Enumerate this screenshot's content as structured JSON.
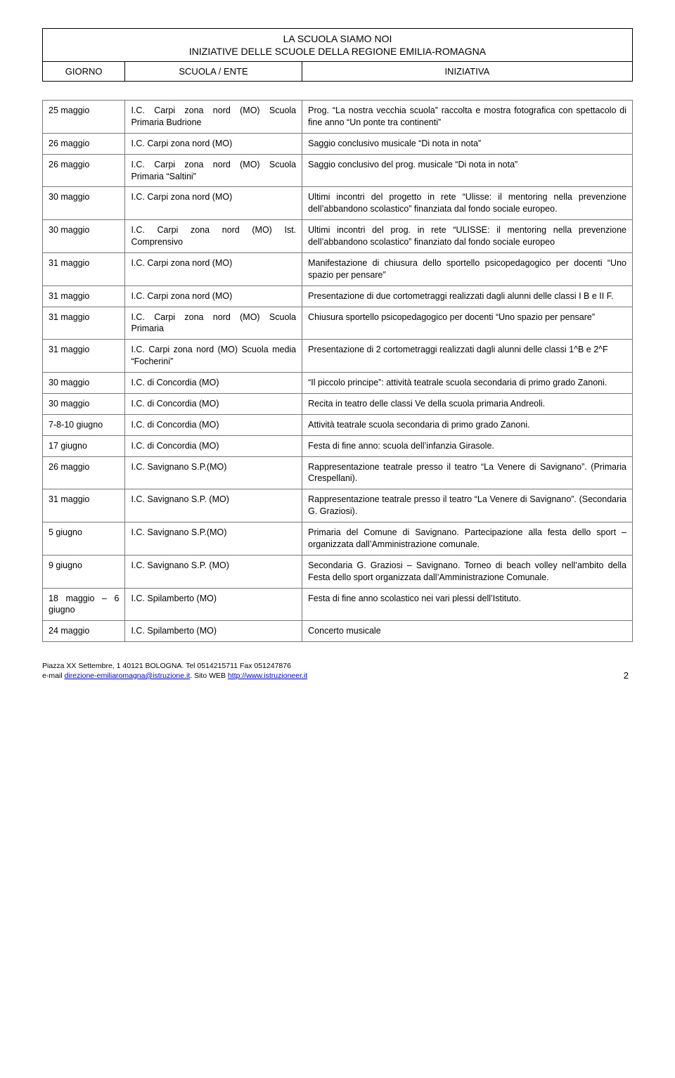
{
  "header": {
    "title1": "LA SCUOLA SIAMO NOI",
    "title2": "INIZIATIVE DELLE SCUOLE DELLA REGIONE EMILIA-ROMAGNA",
    "col1": "GIORNO",
    "col2": "SCUOLA / ENTE",
    "col3": "INIZIATIVA"
  },
  "rows": [
    {
      "d": "25 maggio",
      "s": "I.C. Carpi zona nord (MO) Scuola Primaria Budrione",
      "i": "Prog. “La nostra vecchia scuola”  raccolta e mostra fotografica con spettacolo di fine anno  “Un ponte tra continenti”"
    },
    {
      "d": "26 maggio",
      "s": "I.C. Carpi zona nord (MO)",
      "i": "Saggio conclusivo musicale “Di nota in nota”"
    },
    {
      "d": "26 maggio",
      "s": "I.C. Carpi zona nord (MO) Scuola Primaria “Saltini”",
      "i": "Saggio conclusivo del prog. musicale “Di nota in nota”"
    },
    {
      "d": "30 maggio",
      "s": "I.C. Carpi zona nord (MO)",
      "i": "Ultimi incontri del progetto in rete “Ulisse: il mentoring nella prevenzione dell’abbandono scolastico” finanziata dal fondo sociale europeo."
    },
    {
      "d": "30 maggio",
      "s": "I.C. Carpi zona nord (MO) Ist. Comprensivo",
      "i": "Ultimi incontri del prog. in rete “ULISSE: il mentoring nella prevenzione dell’abbandono scolastico” finanziato dal fondo sociale europeo"
    },
    {
      "d": "31 maggio",
      "s": "I.C. Carpi zona nord (MO)",
      "i": "Manifestazione di chiusura dello sportello psicopedagogico per docenti “Uno spazio per pensare”"
    },
    {
      "d": "31 maggio",
      "s": "I.C. Carpi zona nord (MO)",
      "i": "Presentazione di due cortometraggi realizzati dagli alunni delle classi I B e II F."
    },
    {
      "d": "31 maggio",
      "s": "I.C. Carpi zona nord (MO) Scuola Primaria",
      "i": "Chiusura sportello psicopedagogico per docenti “Uno spazio per pensare”"
    },
    {
      "d": "31 maggio",
      "s": "I.C. Carpi zona nord (MO) Scuola media “Focherini”",
      "i": "Presentazione di 2 cortometraggi realizzati dagli alunni delle classi 1^B e 2^F"
    },
    {
      "d": "30 maggio",
      "s": "I.C. di Concordia (MO)",
      "i": "“Il piccolo principe”: attività teatrale scuola secondaria di primo grado Zanoni."
    },
    {
      "d": "30 maggio",
      "s": "I.C. di Concordia (MO)",
      "i": "Recita in teatro delle classi Ve della scuola primaria Andreoli."
    },
    {
      "d": "7-8-10 giugno",
      "s": "I.C. di Concordia (MO)",
      "i": "Attività teatrale scuola secondaria di primo grado Zanoni."
    },
    {
      "d": "17 giugno",
      "s": "I.C. di Concordia (MO)",
      "i": "Festa di fine anno: scuola dell’infanzia Girasole."
    },
    {
      "d": "26 maggio",
      "s": "I.C. Savignano S.P.(MO)",
      "i": "Rappresentazione teatrale presso il teatro “La Venere di Savignano”. (Primaria Crespellani)."
    },
    {
      "d": "31 maggio",
      "s": "I.C. Savignano S.P. (MO)",
      "i": "Rappresentazione teatrale presso il teatro “La Venere di Savignano”. (Secondaria G. Graziosi)."
    },
    {
      "d": "5 giugno",
      "s": "I.C. Savignano S.P.(MO)",
      "i": "Primaria del Comune di Savignano. Partecipazione alla festa dello sport – organizzata dall’Amministrazione comunale."
    },
    {
      "d": "9 giugno",
      "s": "I.C. Savignano S.P. (MO)",
      "i": "Secondaria G. Graziosi – Savignano. Torneo di beach volley nell’ambito della Festa dello sport organizzata dall’Amministrazione Comunale."
    },
    {
      "d": "18 maggio – 6 giugno",
      "s": "I.C. Spilamberto (MO)",
      "i": "Festa di fine anno scolastico nei vari plessi dell’Istituto."
    },
    {
      "d": "24 maggio",
      "s": "I.C. Spilamberto (MO)",
      "i": "Concerto musicale"
    }
  ],
  "footer": {
    "line1_pre": "Piazza XX Settembre, 1  40121 BOLOGNA. Tel 0514215711 Fax 051247876",
    "line2_pre": "e-mail ",
    "email": "direzione-emiliaromagna@istruzione.it",
    "line2_mid": ". Sito WEB ",
    "url": "http://www.istruzioneer.it",
    "page": "2"
  }
}
